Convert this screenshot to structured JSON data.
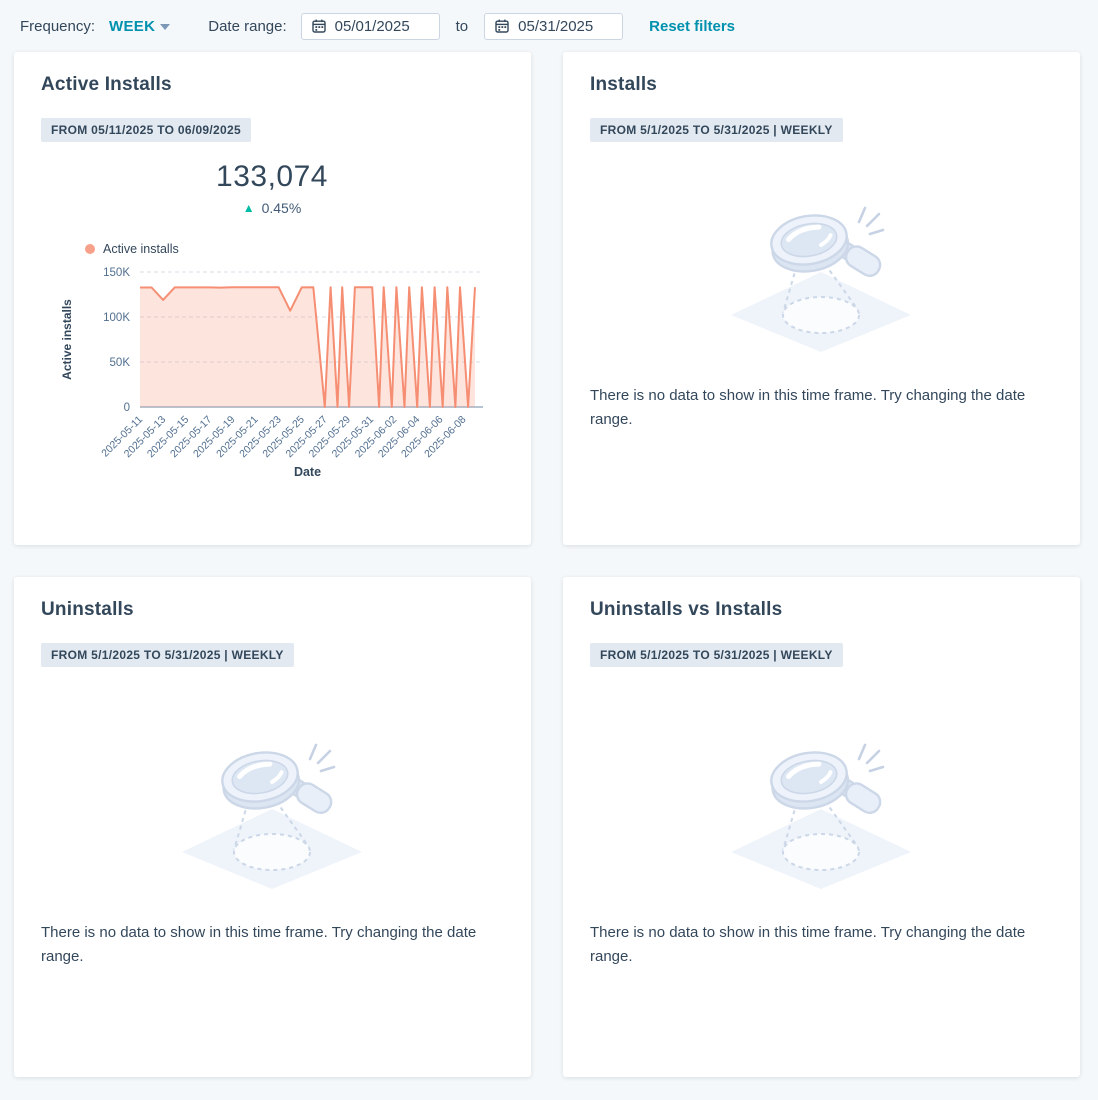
{
  "filters": {
    "frequency_label": "Frequency:",
    "frequency_value": "WEEK",
    "date_range_label": "Date range:",
    "date_from": "05/01/2025",
    "to_label": "to",
    "date_to": "05/31/2025",
    "reset_label": "Reset filters"
  },
  "icons": {
    "frequency_caret": "chevron-down",
    "date_field": "calendar",
    "delta_up": "triangle-up",
    "legend_marker": "dot",
    "empty_state": "magnifying-glass-no-data"
  },
  "colors": {
    "accent_teal": "#0091ae",
    "positive_green": "#00bda5",
    "heading": "#33475b",
    "secondary_text": "#516f90",
    "badge_bg": "#e2e9f0",
    "page_bg": "#f5f8fa",
    "card_bg": "#ffffff",
    "series_coral": "#f58e73"
  },
  "cards": {
    "active_installs": {
      "title": "Active Installs",
      "badge": "FROM 05/11/2025 TO 06/09/2025",
      "total": "133,074",
      "delta": "0.45%",
      "delta_direction": "up",
      "legend": "Active installs"
    },
    "installs": {
      "title": "Installs",
      "badge": "FROM 5/1/2025 TO 5/31/2025 | WEEKLY",
      "empty_text": "There is no data to show in this time frame. Try changing the date range."
    },
    "uninstalls": {
      "title": "Uninstalls",
      "badge": "FROM 5/1/2025 TO 5/31/2025 | WEEKLY",
      "empty_text": "There is no data to show in this time frame. Try changing the date range."
    },
    "uninstalls_vs_installs": {
      "title": "Uninstalls vs Installs",
      "badge": "FROM 5/1/2025 TO 5/31/2025 | WEEKLY",
      "empty_text": "There is no data to show in this time frame. Try changing the date range."
    }
  },
  "chart_data": {
    "type": "area",
    "title": "Active Installs",
    "xlabel": "Date",
    "ylabel": "Active installs",
    "ylim": [
      0,
      150000
    ],
    "grid": "dashed-horizontal",
    "legend_position": "top-left",
    "series": [
      {
        "name": "Active installs",
        "color": "#f58e73",
        "fill": "rgba(246,146,116,0.24)",
        "legend_marker_color": "#f8a18a"
      }
    ],
    "y_ticks": [
      {
        "label": "150K",
        "value": 150000
      },
      {
        "label": "100K",
        "value": 100000
      },
      {
        "label": "50K",
        "value": 50000
      },
      {
        "label": "0",
        "value": 0
      }
    ],
    "x_range_days": [
      0,
      29
    ],
    "x_start_date": "2025-05-11",
    "x_ticks": [
      {
        "label": "2025-05-11",
        "day": 0
      },
      {
        "label": "2025-05-13",
        "day": 2
      },
      {
        "label": "2025-05-15",
        "day": 4
      },
      {
        "label": "2025-05-17",
        "day": 6
      },
      {
        "label": "2025-05-19",
        "day": 8
      },
      {
        "label": "2025-05-21",
        "day": 10
      },
      {
        "label": "2025-05-23",
        "day": 12
      },
      {
        "label": "2025-05-25",
        "day": 14
      },
      {
        "label": "2025-05-27",
        "day": 16
      },
      {
        "label": "2025-05-29",
        "day": 18
      },
      {
        "label": "2025-05-31",
        "day": 20
      },
      {
        "label": "2025-06-02",
        "day": 22
      },
      {
        "label": "2025-06-04",
        "day": 24
      },
      {
        "label": "2025-06-06",
        "day": 26
      },
      {
        "label": "2025-06-08",
        "day": 28
      }
    ],
    "points": [
      [
        0,
        132800
      ],
      [
        1,
        132800
      ],
      [
        2,
        119000
      ],
      [
        3,
        132900
      ],
      [
        4,
        132900
      ],
      [
        5,
        132900
      ],
      [
        6,
        132900
      ],
      [
        7,
        132700
      ],
      [
        8,
        133000
      ],
      [
        9,
        133000
      ],
      [
        10,
        133000
      ],
      [
        11,
        133100
      ],
      [
        12,
        133100
      ],
      [
        13,
        107000
      ],
      [
        14,
        132900
      ],
      [
        15,
        133000
      ],
      [
        16,
        0
      ],
      [
        16.5,
        133074
      ],
      [
        17.1,
        0
      ],
      [
        17.5,
        133074
      ],
      [
        18.1,
        0
      ],
      [
        18.6,
        133074
      ],
      [
        20.1,
        133074
      ],
      [
        20.7,
        0
      ],
      [
        21.1,
        133074
      ],
      [
        21.8,
        0
      ],
      [
        22.2,
        133074
      ],
      [
        22.9,
        0
      ],
      [
        23.3,
        133074
      ],
      [
        24,
        0
      ],
      [
        24.4,
        133074
      ],
      [
        25.1,
        0
      ],
      [
        25.5,
        133074
      ],
      [
        26.2,
        0
      ],
      [
        26.6,
        133074
      ],
      [
        27.3,
        0
      ],
      [
        27.7,
        133074
      ],
      [
        28.4,
        0
      ],
      [
        29,
        133074
      ]
    ]
  }
}
